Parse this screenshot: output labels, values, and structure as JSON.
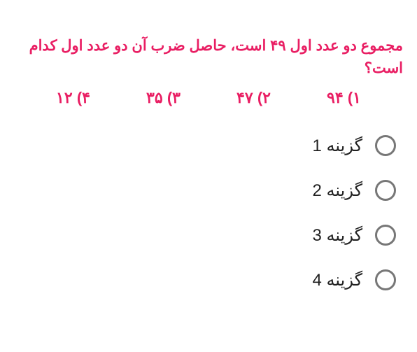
{
  "question": {
    "text": "مجموع دو عدد اول ۴۹ است، حاصل ضرب آن دو عدد اول کدام است؟",
    "text_color": "#e91e63",
    "fontsize": 21
  },
  "inline_choices": [
    {
      "marker": "۱)",
      "value": "۹۴"
    },
    {
      "marker": "۲)",
      "value": "۴۷"
    },
    {
      "marker": "۳)",
      "value": "۳۵"
    },
    {
      "marker": "۴)",
      "value": "۱۲"
    }
  ],
  "options": [
    {
      "label": "گزینه 1"
    },
    {
      "label": "گزینه 2"
    },
    {
      "label": "گزینه 3"
    },
    {
      "label": "گزینه 4"
    }
  ],
  "colors": {
    "accent": "#e91e63",
    "radio_border": "#777777",
    "option_text": "#222222",
    "background": "#ffffff"
  }
}
